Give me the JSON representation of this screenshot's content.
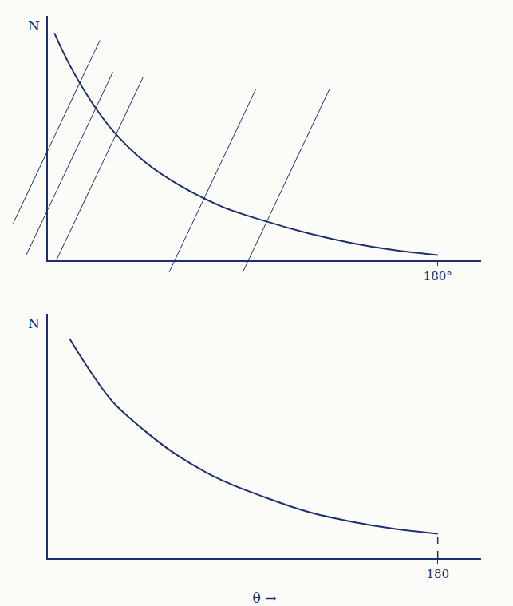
{
  "chart_data": [
    {
      "type": "line",
      "y_label": "N",
      "color": "#1f2f6e",
      "grid": false,
      "tick_labels": "x",
      "x": [
        3,
        10,
        20,
        30,
        45,
        60,
        80,
        100,
        120,
        140,
        160,
        180
      ],
      "values": [
        9.3,
        8.0,
        6.5,
        5.3,
        4.0,
        3.1,
        2.2,
        1.6,
        1.1,
        0.7,
        0.4,
        0.2
      ],
      "xlim": [
        0,
        200
      ],
      "xticks": [
        {
          "value": 180,
          "label": "180°"
        }
      ],
      "ylim": [
        0,
        10
      ]
    },
    {
      "type": "line",
      "y_label": "N",
      "x_label": "θ →",
      "color": "#1f2f6e",
      "grid": false,
      "tick_labels": "x",
      "x": [
        10,
        20,
        30,
        45,
        60,
        80,
        100,
        120,
        140,
        160,
        180
      ],
      "values": [
        9.0,
        7.6,
        6.4,
        5.2,
        4.2,
        3.2,
        2.5,
        1.9,
        1.5,
        1.2,
        1.0
      ],
      "xlim": [
        0,
        200
      ],
      "xticks": [
        180
      ],
      "ylim": [
        0,
        10
      ]
    }
  ]
}
